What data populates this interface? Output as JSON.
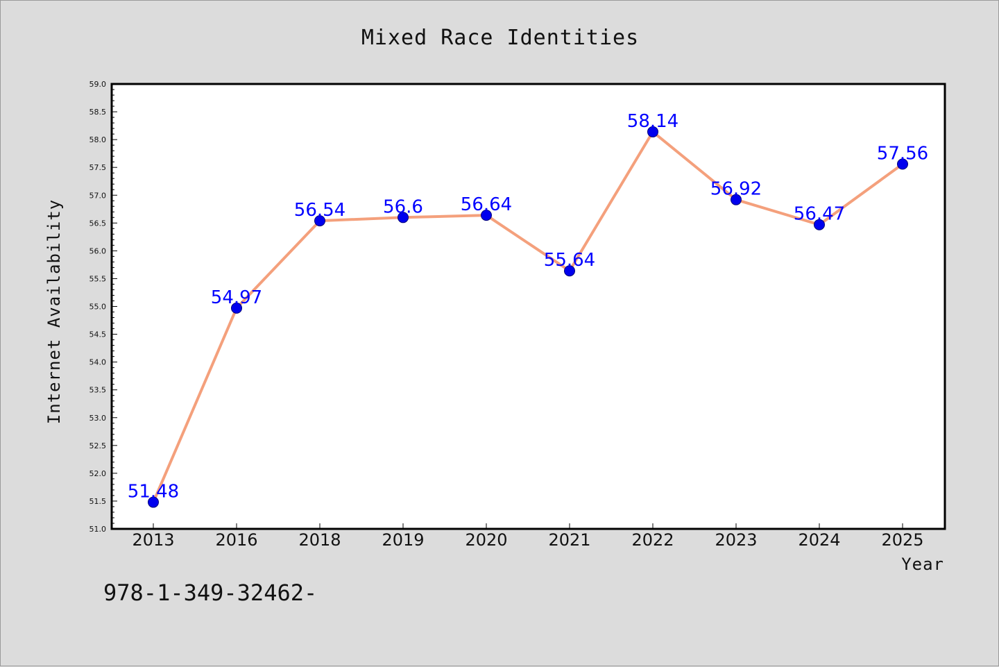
{
  "chart_data": {
    "type": "line",
    "title": "Mixed Race Identities",
    "xlabel": "Year",
    "ylabel": "Internet Availability",
    "categories": [
      "2013",
      "2016",
      "2018",
      "2019",
      "2020",
      "2021",
      "2022",
      "2023",
      "2024",
      "2025"
    ],
    "series": [
      {
        "values": [
          51.48,
          54.97,
          56.54,
          56.6,
          56.64,
          55.64,
          58.14,
          56.92,
          56.47,
          57.56
        ],
        "data_labels": [
          "51.48",
          "54.97",
          "56.54",
          "56.6",
          "56.64",
          "55.64",
          "58.14",
          "56.92",
          "56.47",
          "57.56"
        ]
      }
    ],
    "ylim": [
      51.0,
      59.0
    ],
    "yticks": [
      "51.0",
      "51.5",
      "52.0",
      "52.5",
      "53.0",
      "53.5",
      "54.0",
      "54.5",
      "55.0",
      "55.5",
      "56.0",
      "56.5",
      "57.0",
      "57.5",
      "58.0",
      "58.5",
      "59.0"
    ],
    "grid": false,
    "legend": "none",
    "colors": {
      "line": "#f4a07c",
      "marker": "#0000ee",
      "marker_edge": "#00007a",
      "data_label": "#0000ff",
      "plot_background": "#ffffff",
      "figure_background": "#dcdcdc"
    }
  },
  "footer": {
    "isbn": "978-1-349-32462-"
  }
}
